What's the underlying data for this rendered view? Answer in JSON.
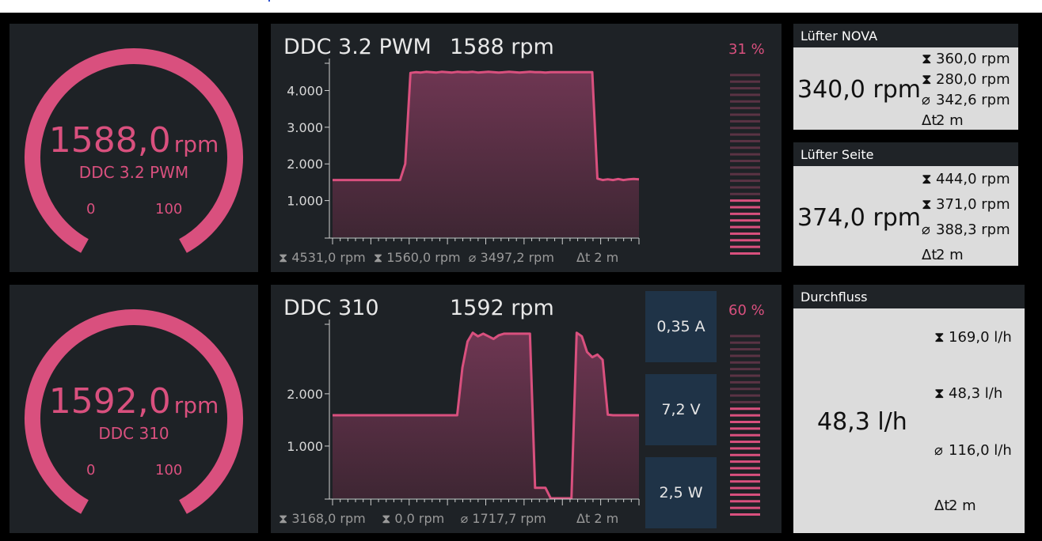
{
  "gauges": [
    {
      "value": "1588,0",
      "unit": "rpm",
      "name": "DDC 3.2 PWM",
      "min": "0",
      "max": "100"
    },
    {
      "value": "1592,0",
      "unit": "rpm",
      "name": "DDC 310",
      "min": "0",
      "max": "100"
    }
  ],
  "charts": [
    {
      "title": "DDC 3.2 PWM",
      "rpm": "1588 rpm",
      "percent": "31 %",
      "percent_value": 31,
      "max_label": "4531,0 rpm",
      "min_label": "1560,0 rpm",
      "avg_label": "3497,2 rpm",
      "time_label": "2 m",
      "y_ticks": [
        "4.000",
        "3.000",
        "2.000",
        "1.000"
      ],
      "max_symbol": "⧗",
      "avg_symbol": "⌀",
      "time_symbol": "Δt"
    },
    {
      "title": "DDC 310",
      "rpm": "1592 rpm",
      "percent": "60 %",
      "percent_value": 60,
      "max_label": "3168,0 rpm",
      "min_label": "0,0 rpm",
      "avg_label": "1717,7 rpm",
      "time_label": "2 m",
      "y_ticks": [
        "2.000",
        "1.000"
      ],
      "electrical": [
        "0,35 A",
        "7,2 V",
        "2,5 W"
      ]
    }
  ],
  "chart_data": [
    {
      "type": "area",
      "title": "DDC 3.2 PWM",
      "ylabel": "",
      "ylim": [
        0,
        4700
      ],
      "y_ticks": [
        1000,
        2000,
        3000,
        4000
      ],
      "x": [
        0,
        1,
        2,
        3,
        4,
        5,
        6,
        7,
        8,
        9,
        10,
        11,
        12,
        13,
        14,
        15,
        16,
        17,
        18,
        19,
        20,
        21,
        22,
        23,
        24,
        25,
        26,
        27,
        28,
        29,
        30,
        31,
        32,
        33,
        34,
        35,
        36,
        37,
        38,
        39,
        40,
        41,
        42,
        43,
        44,
        45,
        46,
        47,
        48,
        49,
        50,
        51,
        52,
        53,
        54,
        55,
        56,
        57,
        58,
        59
      ],
      "values": [
        1560,
        1560,
        1560,
        1560,
        1560,
        1560,
        1560,
        1560,
        1560,
        1560,
        1560,
        1560,
        1560,
        1560,
        2000,
        4480,
        4500,
        4490,
        4510,
        4500,
        4490,
        4510,
        4500,
        4490,
        4510,
        4500,
        4500,
        4510,
        4490,
        4500,
        4510,
        4500,
        4490,
        4500,
        4510,
        4500,
        4490,
        4500,
        4510,
        4500,
        4500,
        4490,
        4500,
        4500,
        4500,
        4500,
        4500,
        4500,
        4500,
        4500,
        4500,
        1600,
        1560,
        1580,
        1560,
        1590,
        1560,
        1580,
        1590,
        1580
      ]
    },
    {
      "type": "area",
      "title": "DDC 310",
      "ylabel": "",
      "ylim": [
        0,
        3300
      ],
      "y_ticks": [
        1000,
        2000
      ],
      "x": [
        0,
        1,
        2,
        3,
        4,
        5,
        6,
        7,
        8,
        9,
        10,
        11,
        12,
        13,
        14,
        15,
        16,
        17,
        18,
        19,
        20,
        21,
        22,
        23,
        24,
        25,
        26,
        27,
        28,
        29,
        30,
        31,
        32,
        33,
        34,
        35,
        36,
        37,
        38,
        39,
        40,
        41,
        42,
        43,
        44,
        45,
        46,
        47,
        48,
        49,
        50,
        51,
        52,
        53,
        54,
        55,
        56,
        57,
        58,
        59
      ],
      "values": [
        1590,
        1590,
        1590,
        1590,
        1590,
        1590,
        1590,
        1590,
        1590,
        1590,
        1590,
        1590,
        1590,
        1590,
        1590,
        1590,
        1590,
        1590,
        1590,
        1590,
        1590,
        1590,
        1590,
        1590,
        1590,
        2500,
        3000,
        3168,
        3100,
        3150,
        3100,
        3050,
        3120,
        3150,
        3150,
        3150,
        3150,
        3150,
        3150,
        200,
        200,
        200,
        0,
        0,
        0,
        0,
        0,
        3168,
        3100,
        2800,
        2700,
        2750,
        2650,
        1600,
        1590,
        1590,
        1590,
        1590,
        1590,
        1590
      ]
    }
  ],
  "sensors": [
    {
      "name": "Lüfter NOVA",
      "value": "340,0 rpm",
      "max": "360,0 rpm",
      "min": "280,0 rpm",
      "avg": "342,6 rpm",
      "time": "2 m"
    },
    {
      "name": "Lüfter Seite",
      "value": "374,0 rpm",
      "max": "444,0 rpm",
      "min": "371,0 rpm",
      "avg": "388,3 rpm",
      "time": "2 m"
    },
    {
      "name": "Durchfluss",
      "value": "48,3 l/h",
      "max": "169,0 l/h",
      "min": "48,3 l/h",
      "avg": "116,0 l/h",
      "time": "2 m"
    }
  ],
  "symbols": {
    "max": "⧗",
    "min": "⧗",
    "avg": "⌀",
    "time": "Δt"
  },
  "colors": {
    "accent": "#d9507e",
    "panel": "#1e2226",
    "fill": "#6b3650",
    "sensor_bg": "#dcdcdc",
    "electrical_bg": "#1f3347"
  }
}
